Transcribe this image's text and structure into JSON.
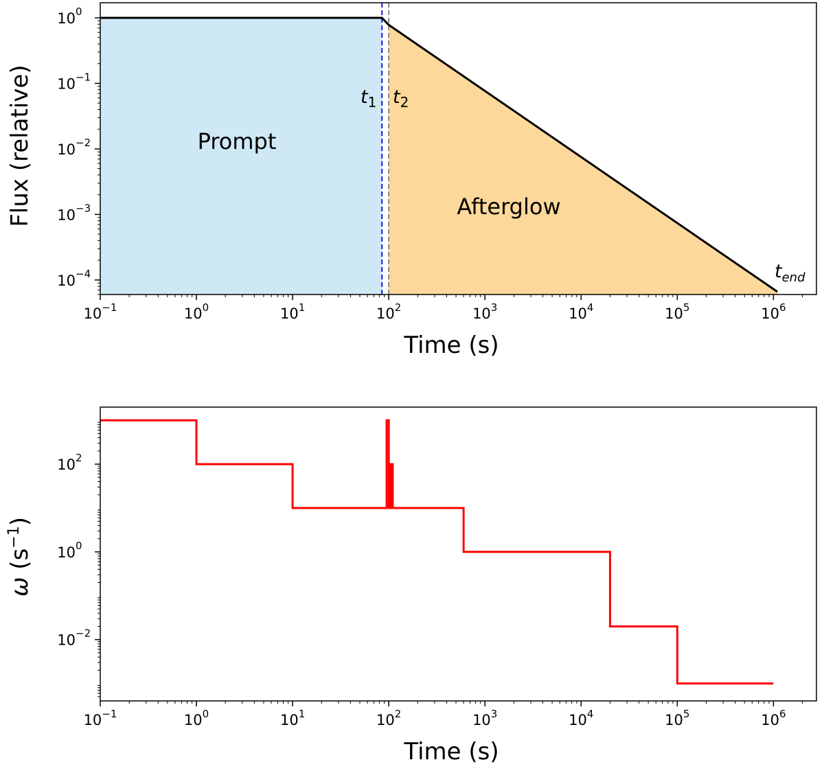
{
  "chart_data": [
    {
      "type": "area",
      "xlabel": "Time (s)",
      "ylabel": "Flux (relative)",
      "xscale": "log",
      "yscale": "log",
      "xlim": [
        0.1,
        2800000
      ],
      "ylim": [
        6e-05,
        1.7
      ],
      "xticks": [
        {
          "base": "10",
          "exp": "−1",
          "value": 0.1
        },
        {
          "base": "10",
          "exp": "0",
          "value": 1
        },
        {
          "base": "10",
          "exp": "1",
          "value": 10
        },
        {
          "base": "10",
          "exp": "2",
          "value": 100
        },
        {
          "base": "10",
          "exp": "3",
          "value": 1000
        },
        {
          "base": "10",
          "exp": "4",
          "value": 10000
        },
        {
          "base": "10",
          "exp": "5",
          "value": 100000
        },
        {
          "base": "10",
          "exp": "6",
          "value": 1000000
        }
      ],
      "yticks": [
        {
          "base": "10",
          "exp": "0",
          "value": 1
        },
        {
          "base": "10",
          "exp": "−1",
          "value": 0.1
        },
        {
          "base": "10",
          "exp": "−2",
          "value": 0.01
        },
        {
          "base": "10",
          "exp": "−3",
          "value": 0.001
        },
        {
          "base": "10",
          "exp": "−4",
          "value": 0.0001
        }
      ],
      "series": [
        {
          "x": [
            0.1,
            85,
            100,
            1100000
          ],
          "y": [
            1.0,
            1.0,
            0.78,
            6.6e-05
          ],
          "color": "#000000"
        }
      ],
      "regions": [
        {
          "label": "Prompt",
          "x_from": 0.1,
          "x_to": 85,
          "color": "#cfe8f5"
        },
        {
          "label": "Afterglow",
          "x_from": 100,
          "x_to": 1100000,
          "color": "#fcd89a"
        }
      ],
      "vlines": [
        {
          "x": 85,
          "color": "#1a1adb",
          "style": "dashed"
        },
        {
          "x": 100,
          "color": "#888888",
          "style": "dashed"
        }
      ],
      "annotations": [
        {
          "sym": "t",
          "sub": "1"
        },
        {
          "sym": "t",
          "sub": "2"
        },
        {
          "sym": "t",
          "sub": "end"
        }
      ]
    },
    {
      "type": "line",
      "xlabel": "Time (s)",
      "ylabel_sym": "ω",
      "ylabel_unit": "(s",
      "ylabel_exp": "−1",
      "ylabel_close": ")",
      "xscale": "log",
      "yscale": "log",
      "xlim": [
        0.1,
        2800000
      ],
      "ylim": [
        0.0004,
        2000
      ],
      "xticks": [
        {
          "base": "10",
          "exp": "−1",
          "value": 0.1
        },
        {
          "base": "10",
          "exp": "0",
          "value": 1
        },
        {
          "base": "10",
          "exp": "1",
          "value": 10
        },
        {
          "base": "10",
          "exp": "2",
          "value": 100
        },
        {
          "base": "10",
          "exp": "3",
          "value": 1000
        },
        {
          "base": "10",
          "exp": "4",
          "value": 10000
        },
        {
          "base": "10",
          "exp": "5",
          "value": 100000
        },
        {
          "base": "10",
          "exp": "6",
          "value": 1000000
        }
      ],
      "yticks": [
        {
          "base": "10",
          "exp": "2",
          "value": 100
        },
        {
          "base": "10",
          "exp": "0",
          "value": 1
        },
        {
          "base": "10",
          "exp": "−2",
          "value": 0.01
        }
      ],
      "series": [
        {
          "color": "#ff0000",
          "style": "step",
          "x": [
            0.1,
            1,
            1,
            10,
            10,
            95,
            95,
            100,
            100,
            105,
            105,
            110,
            110,
            600,
            600,
            20000,
            20000,
            100000,
            100000,
            1000000
          ],
          "y": [
            1000,
            1000,
            100,
            100,
            10,
            10,
            1000,
            1000,
            10,
            10,
            100,
            100,
            10,
            10,
            1,
            1,
            0.02,
            0.02,
            0.001,
            0.001
          ]
        }
      ]
    }
  ]
}
